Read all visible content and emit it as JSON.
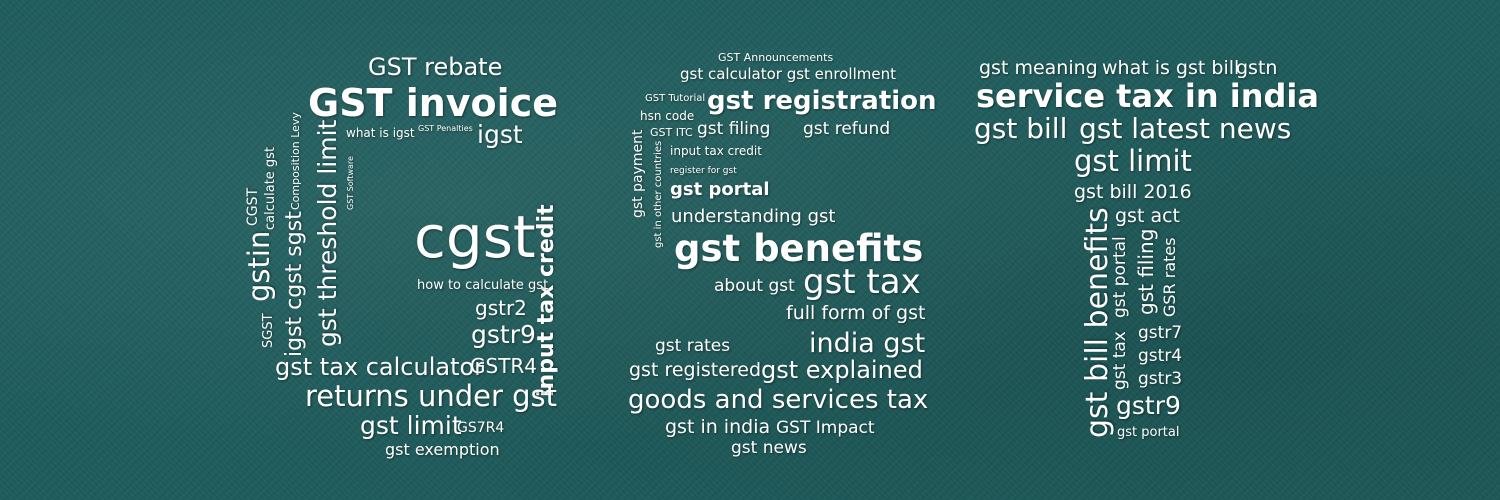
{
  "colors": {
    "background": "#1f5c5c",
    "text": "#ffffff"
  },
  "left_cloud": {
    "gst_rebate": "GST rebate",
    "gst_invoice": "GST invoice",
    "what_is_igst": "what is igst",
    "gst_penalties": "GST Penalties",
    "igst": "igst",
    "cgst_caps": "CGST",
    "calculate_gst": "calculate gst",
    "composition_levy": "Composition Levy",
    "gst_software": "GST Software",
    "gst_threshold_limit": "gst threshold limit",
    "gstin": "gstin",
    "igst_cgst_sgst": "igst cgst sgst",
    "sgst": "SGST",
    "cgst": "cgst",
    "input_tax_credit": "input tax credit",
    "how_to_calculate_gst": "how to calculate gst",
    "gstr2": "gstr2",
    "gstr9": "gstr9",
    "gst_tax_calculator": "gst tax calculator",
    "gstr4": "GSTR4",
    "returns_under_gst": "returns under gst",
    "gst_limit": "gst limit",
    "gs7r4": "GS7R4",
    "gst_exemption": "gst exemption"
  },
  "middle_cloud": {
    "gst_announcements": "GST Announcements",
    "gst_calculator_enrollment": "gst calculator gst enrollment",
    "gst_tutorial": "GST Tutorial",
    "gst_registration": "gst registration",
    "hsn_code": "hsn code",
    "gst_itc": "GST ITC",
    "gst_filing": "gst filing",
    "gst_refund": "gst refund",
    "gst_payment": "gst payment",
    "gst_in_other_countries": "gst in other countries",
    "input_tax_credit": "input tax credit",
    "register_for_gst": "register for gst",
    "gst_portal": "gst portal",
    "understanding_gst": "understanding gst",
    "gst_benefits": "gst benefits",
    "about_gst": "about gst",
    "gst_tax": "gst tax",
    "full_form_of_gst": "full form of gst",
    "gst_rates": "gst rates",
    "india_gst": "india gst",
    "gst_registered": "gst registered",
    "gst_explained": "gst explained",
    "goods_and_services_tax": "goods and services tax",
    "gst_in_india": "gst in india",
    "gst_impact": "GST Impact",
    "gst_news": "gst news"
  },
  "right_cloud": {
    "gst_meaning": "gst meaning",
    "what_is_gst_bill": "what is gst bill",
    "gstn": "gstn",
    "service_tax_in_india": "service tax in india",
    "gst_bill": "gst bill",
    "gst_latest_news": "gst latest news",
    "gst_limit": "gst limit",
    "gst_bill_2016": "gst bill 2016",
    "gst_bill_benefits": "gst bill benefits",
    "gst_act": "gst act",
    "gst_portal_v": "gst portal",
    "gst_filing_v": "gst filing",
    "gsr_rates": "GSR rates",
    "gst_tax_v": "gst tax",
    "gstr7": "gstr7",
    "gstr4": "gstr4",
    "gstr3": "gstr3",
    "gstr9": "gstr9",
    "gst_portal": "gst portal"
  }
}
